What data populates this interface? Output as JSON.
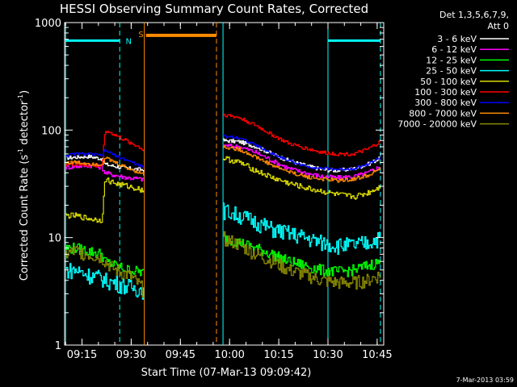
{
  "chart_data": {
    "type": "line",
    "title": "HESSI Observing Summary Count Rates, Corrected",
    "xlabel": "Start Time (07-Mar-13 09:09:42)",
    "ylabel_main": "Corrected Count Rate (s",
    "ylabel_sup1": "-1",
    "ylabel_mid": " detector",
    "ylabel_sup2": "-1",
    "ylabel_end": ")",
    "x_unit": "minutes after 09:00 UT",
    "xlim": [
      9.7,
      107
    ],
    "ylim": [
      1,
      1000
    ],
    "yscale": "log",
    "x_ticks": [
      {
        "value": 15,
        "label": "09:15"
      },
      {
        "value": 30,
        "label": "09:30"
      },
      {
        "value": 45,
        "label": "09:45"
      },
      {
        "value": 60,
        "label": "10:00"
      },
      {
        "value": 75,
        "label": "10:15"
      },
      {
        "value": 90,
        "label": "10:30"
      },
      {
        "value": 105,
        "label": "10:45"
      }
    ],
    "y_ticks": [
      {
        "value": 1,
        "label": "1"
      },
      {
        "value": 10,
        "label": "10"
      },
      {
        "value": 100,
        "label": "100"
      },
      {
        "value": 1000,
        "label": "1000"
      }
    ],
    "legend_header": [
      "Det 1,3,5,6,7,9,",
      "Att 0"
    ],
    "legend_position": "right",
    "timestamp": "7-Mar-2013 03:59",
    "flags": [
      {
        "label": "N",
        "color": "#00ffff"
      },
      {
        "label": "S",
        "color": "#ff8c00"
      }
    ],
    "segments": [
      [
        10,
        34
      ],
      [
        58,
        106
      ]
    ],
    "series": [
      {
        "name": "3 - 6 keV",
        "color": "#ffffff",
        "x": [
          10,
          13,
          17,
          21,
          22,
          25,
          29,
          33,
          34,
          58,
          63,
          68,
          73,
          78,
          83,
          88,
          93,
          98,
          102,
          106
        ],
        "y": [
          55,
          56,
          57,
          54,
          48,
          46,
          44,
          43,
          42,
          80,
          78,
          70,
          60,
          52,
          47,
          43,
          42,
          44,
          48,
          55
        ],
        "noise": 0.04
      },
      {
        "name": "6 - 12 keV",
        "color": "#ff00ff",
        "x": [
          10,
          13,
          17,
          21,
          22,
          25,
          29,
          33,
          34,
          58,
          63,
          68,
          73,
          78,
          83,
          88,
          93,
          98,
          102,
          106
        ],
        "y": [
          45,
          46,
          47,
          45,
          40,
          38,
          36,
          35,
          35,
          72,
          70,
          62,
          52,
          44,
          40,
          37,
          36,
          37,
          40,
          46
        ],
        "noise": 0.05
      },
      {
        "name": "12 - 25 keV",
        "color": "#00ff00",
        "x": [
          10,
          13,
          17,
          21,
          22,
          25,
          29,
          33,
          34,
          58,
          63,
          68,
          73,
          78,
          83,
          88,
          93,
          98,
          102,
          106
        ],
        "y": [
          8,
          8,
          7.5,
          7,
          6,
          5.5,
          5,
          4.8,
          4.6,
          10,
          9,
          8,
          7,
          6,
          5.5,
          5,
          4.8,
          5,
          5.5,
          6
        ],
        "noise": 0.12
      },
      {
        "name": "25 - 50 keV",
        "color": "#00ffff",
        "x": [
          10,
          13,
          17,
          21,
          22,
          25,
          29,
          33,
          34,
          58,
          63,
          68,
          73,
          78,
          83,
          88,
          93,
          98,
          102,
          106
        ],
        "y": [
          5,
          5,
          4.5,
          4.2,
          4,
          3.8,
          3.5,
          3.3,
          3.2,
          18,
          16,
          14,
          12,
          11,
          10,
          9,
          8.5,
          8.5,
          9,
          10
        ],
        "noise": 0.18
      },
      {
        "name": "50 - 100 keV",
        "color": "#dddd00",
        "x": [
          10,
          13,
          17,
          21,
          22,
          25,
          29,
          33,
          34,
          58,
          63,
          68,
          73,
          78,
          83,
          88,
          93,
          98,
          102,
          106
        ],
        "y": [
          16,
          16,
          15,
          14.5,
          35,
          32,
          30,
          28,
          27,
          55,
          50,
          42,
          36,
          32,
          29,
          27,
          25,
          24,
          26,
          30
        ],
        "noise": 0.06
      },
      {
        "name": "100 - 300 keV",
        "color": "#ff0000",
        "x": [
          10,
          13,
          17,
          21,
          22,
          25,
          29,
          33,
          34,
          58,
          63,
          68,
          73,
          78,
          83,
          88,
          93,
          98,
          102,
          106
        ],
        "y": [
          48,
          48,
          47,
          46,
          100,
          90,
          78,
          68,
          62,
          140,
          130,
          110,
          90,
          75,
          68,
          62,
          60,
          60,
          66,
          78
        ],
        "noise": 0.04
      },
      {
        "name": "300 - 800 keV",
        "color": "#0000ff",
        "x": [
          10,
          13,
          17,
          21,
          22,
          25,
          29,
          33,
          34,
          58,
          63,
          68,
          73,
          78,
          83,
          88,
          93,
          98,
          102,
          106
        ],
        "y": [
          58,
          60,
          60,
          58,
          65,
          58,
          52,
          46,
          44,
          88,
          85,
          72,
          60,
          52,
          46,
          44,
          43,
          44,
          48,
          56
        ],
        "noise": 0.03
      },
      {
        "name": "800 - 7000 keV",
        "color": "#ff8c00",
        "x": [
          10,
          13,
          17,
          21,
          22,
          25,
          29,
          33,
          34,
          58,
          63,
          68,
          73,
          78,
          83,
          88,
          93,
          98,
          102,
          106
        ],
        "y": [
          50,
          50,
          49,
          48,
          55,
          50,
          44,
          40,
          38,
          70,
          66,
          56,
          47,
          41,
          37,
          35,
          34,
          35,
          38,
          44
        ],
        "noise": 0.04
      },
      {
        "name": "7000 - 20000 keV",
        "color": "#888800",
        "x": [
          10,
          13,
          17,
          21,
          22,
          25,
          29,
          33,
          34,
          58,
          63,
          68,
          73,
          78,
          83,
          88,
          93,
          98,
          102,
          106
        ],
        "y": [
          7,
          7.5,
          7,
          6.5,
          6,
          5,
          4.5,
          3.5,
          3,
          10,
          8.5,
          7,
          6,
          5,
          4.5,
          4,
          3.8,
          3.8,
          4,
          4.5
        ],
        "noise": 0.15
      }
    ]
  }
}
